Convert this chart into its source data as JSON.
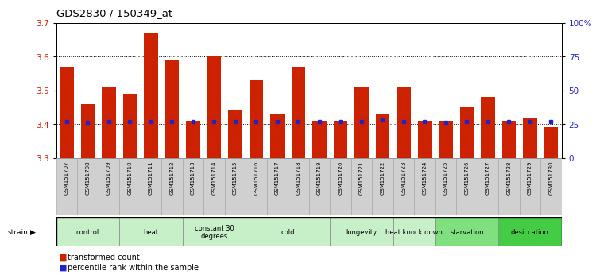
{
  "title": "GDS2830 / 150349_at",
  "samples": [
    "GSM151707",
    "GSM151708",
    "GSM151709",
    "GSM151710",
    "GSM151711",
    "GSM151712",
    "GSM151713",
    "GSM151714",
    "GSM151715",
    "GSM151716",
    "GSM151717",
    "GSM151718",
    "GSM151719",
    "GSM151720",
    "GSM151721",
    "GSM151722",
    "GSM151723",
    "GSM151724",
    "GSM151725",
    "GSM151726",
    "GSM151727",
    "GSM151728",
    "GSM151729",
    "GSM151730"
  ],
  "red_values": [
    3.57,
    3.46,
    3.51,
    3.49,
    3.67,
    3.59,
    3.41,
    3.6,
    3.44,
    3.53,
    3.43,
    3.57,
    3.41,
    3.41,
    3.51,
    3.43,
    3.51,
    3.41,
    3.41,
    3.45,
    3.48,
    3.41,
    3.42,
    3.39
  ],
  "percentile_values": [
    27,
    26,
    27,
    27,
    27,
    27,
    27,
    27,
    27,
    27,
    27,
    27,
    27,
    27,
    27,
    28,
    27,
    27,
    26,
    27,
    27,
    27,
    27,
    27
  ],
  "groups": [
    {
      "label": "control",
      "start": 0,
      "end": 2,
      "color": "#c8f0c8"
    },
    {
      "label": "heat",
      "start": 3,
      "end": 5,
      "color": "#c8f0c8"
    },
    {
      "label": "constant 30\ndegrees",
      "start": 6,
      "end": 8,
      "color": "#c8f0c8"
    },
    {
      "label": "cold",
      "start": 9,
      "end": 12,
      "color": "#c8f0c8"
    },
    {
      "label": "longevity",
      "start": 13,
      "end": 15,
      "color": "#c8f0c8"
    },
    {
      "label": "heat knock down",
      "start": 16,
      "end": 17,
      "color": "#c8f0c8"
    },
    {
      "label": "starvation",
      "start": 18,
      "end": 20,
      "color": "#80e080"
    },
    {
      "label": "desiccation",
      "start": 21,
      "end": 23,
      "color": "#44cc44"
    }
  ],
  "ylim_left": [
    3.3,
    3.7
  ],
  "ylim_right": [
    0,
    100
  ],
  "yticks_left": [
    3.3,
    3.4,
    3.5,
    3.6,
    3.7
  ],
  "yticks_right": [
    0,
    25,
    50,
    75,
    100
  ],
  "ytick_labels_right": [
    "0",
    "25",
    "50",
    "75",
    "100%"
  ],
  "bar_color": "#cc2200",
  "dot_color": "#2222cc",
  "bg_color": "#ffffff",
  "plot_bg": "#ffffff",
  "grid_color": "#000000",
  "tick_label_color_left": "#cc2200",
  "tick_label_color_right": "#2222cc",
  "label_bg_color": "#d0d0d0",
  "label_edge_color": "#aaaaaa"
}
